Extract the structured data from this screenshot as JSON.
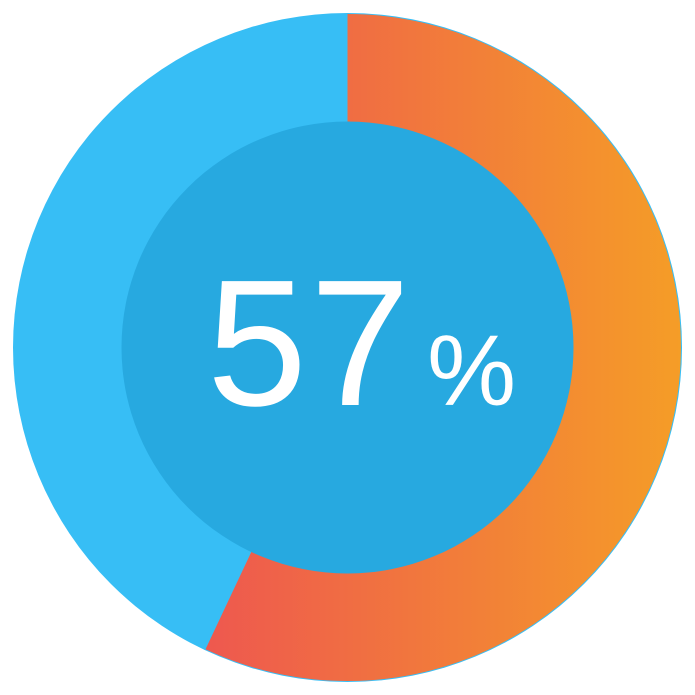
{
  "page": {
    "background_color": "#ffffff"
  },
  "chart_data": {
    "type": "pie",
    "subtype": "donut-progress",
    "title": "",
    "total": 100,
    "start_angle_deg": 0,
    "direction": "clockwise",
    "series": [
      {
        "name": "progress",
        "value": 57,
        "color_gradient": [
          "#ee584f",
          "#f59d27"
        ]
      },
      {
        "name": "remainder",
        "value": 43,
        "color": "#37bef5"
      }
    ],
    "inner_circle_color": "#27a9e0",
    "legend_position": "none",
    "center_label": {
      "value": "57",
      "unit": "%",
      "text_color": "#ffffff"
    }
  }
}
